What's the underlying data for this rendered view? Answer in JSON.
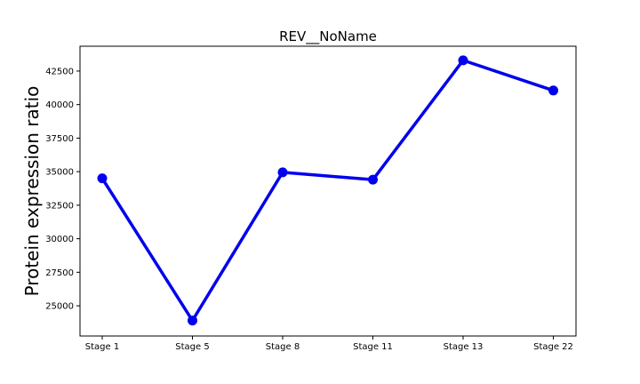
{
  "chart_data": {
    "type": "line",
    "title": "REV__NoName",
    "xlabel": "",
    "ylabel": "Protein expression ratio",
    "categories": [
      "Stage 1",
      "Stage 5",
      "Stage 8",
      "Stage 11",
      "Stage 13",
      "Stage 22"
    ],
    "series": [
      {
        "values": [
          34500,
          23900,
          34950,
          34400,
          43300,
          41050
        ],
        "color": "#0000ee"
      }
    ],
    "yticks": [
      25000,
      27500,
      30000,
      32500,
      35000,
      37500,
      40000,
      42500
    ],
    "ytick_labels": [
      "25000",
      "27500",
      "30000",
      "32500",
      "35000",
      "37500",
      "40000",
      "42500"
    ],
    "ylim": [
      22750,
      44350
    ],
    "grid": false,
    "legend": "none"
  }
}
